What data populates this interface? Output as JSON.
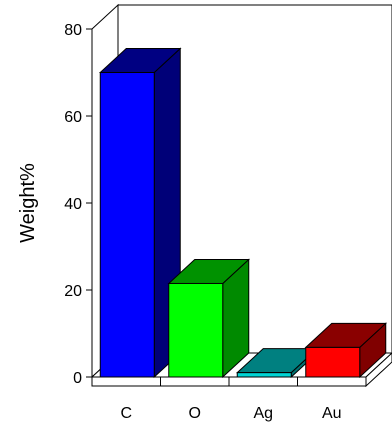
{
  "chart_data": {
    "type": "bar",
    "title": "",
    "xlabel": "",
    "ylabel": "Weight%",
    "categories": [
      "C",
      "O",
      "Ag",
      "Au"
    ],
    "values": [
      70,
      21.5,
      1,
      6.8
    ],
    "ylim": [
      0,
      80
    ],
    "yticks": [
      0,
      20,
      40,
      60,
      80
    ],
    "style": "3d",
    "grid": false,
    "legend": "none",
    "colors": [
      {
        "front": "#0000ff",
        "side": "#000078",
        "top": "#000082"
      },
      {
        "front": "#00ff00",
        "side": "#008a00",
        "top": "#009200"
      },
      {
        "front": "#00d4d4",
        "side": "#007070",
        "top": "#008080"
      },
      {
        "front": "#ff0000",
        "side": "#800000",
        "top": "#8a0000"
      }
    ]
  }
}
